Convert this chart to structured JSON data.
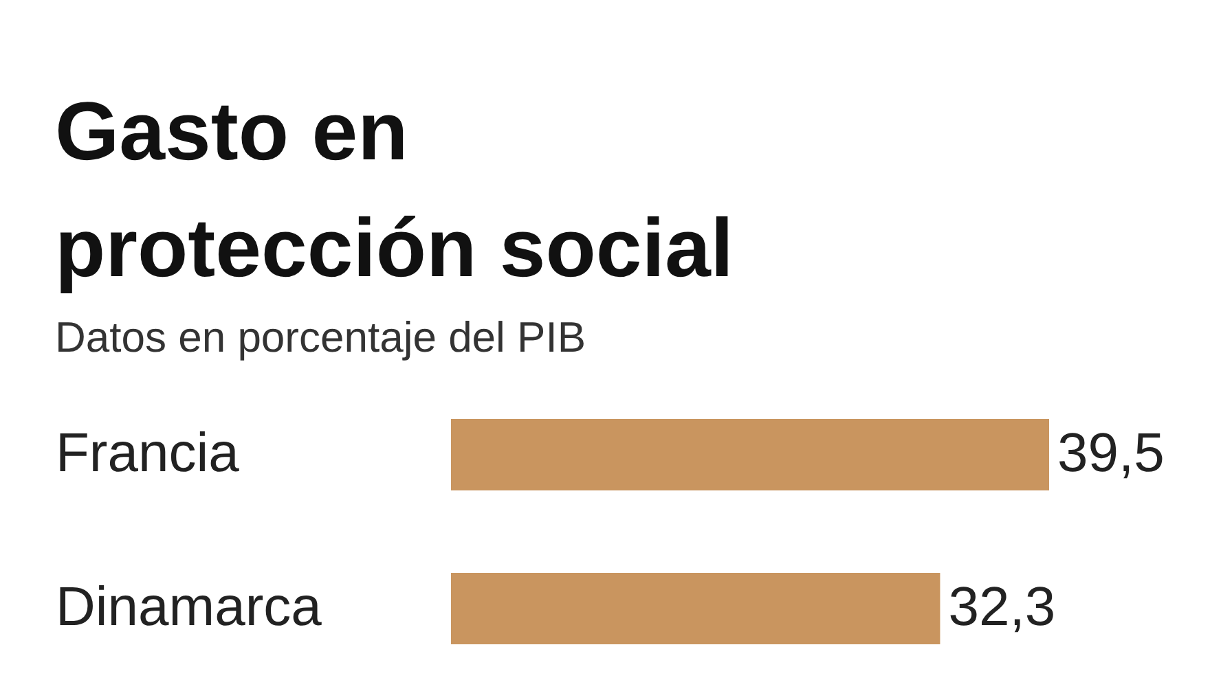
{
  "chart_data": {
    "type": "bar",
    "orientation": "horizontal",
    "title": "Gasto en protección social",
    "subtitle": "Datos en porcentaje del PIB",
    "categories": [
      "Francia",
      "Dinamarca"
    ],
    "values": [
      39.5,
      32.3
    ],
    "value_labels": [
      "39,5",
      "32,3"
    ],
    "color": "#c9955f",
    "grid": false
  }
}
